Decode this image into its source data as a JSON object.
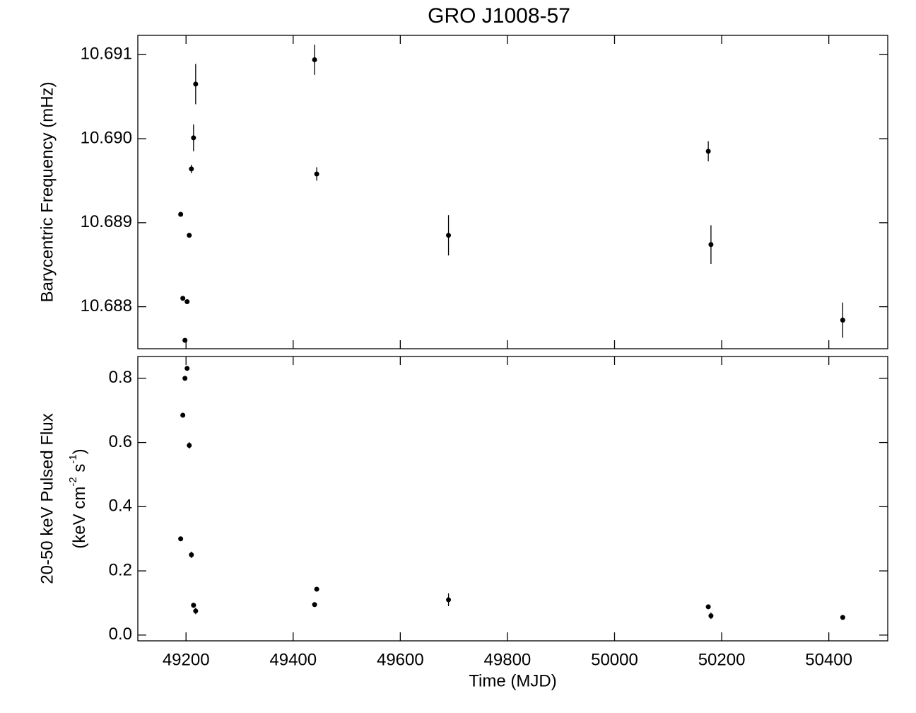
{
  "chart_data": [
    {
      "type": "scatter",
      "title": "GRO J1008-57",
      "ylabel": "Barycentric Frequency (mHz)",
      "x": [
        49190,
        49194,
        49198,
        49202,
        49206,
        49210,
        49214,
        49218,
        49440,
        49444,
        49690,
        50175,
        50180,
        50426
      ],
      "values": [
        10.6891,
        10.6881,
        10.6876,
        10.68806,
        10.68885,
        10.68964,
        10.69001,
        10.69065,
        10.69094,
        10.68958,
        10.68885,
        10.68985,
        10.68874,
        10.68784
      ],
      "errors": [
        2e-05,
        2e-05,
        2e-05,
        2e-05,
        2e-05,
        5e-05,
        0.00016,
        0.00024,
        0.00018,
        8e-05,
        0.00024,
        0.00012,
        0.00023,
        0.00021
      ],
      "color": "#000000",
      "xlim": [
        49110,
        50510
      ],
      "xticks": [
        49200,
        49400,
        49600,
        49800,
        50000,
        50200,
        50400
      ],
      "ylim": [
        10.6875,
        10.69123
      ],
      "yticks": [
        {
          "value": 10.688,
          "label": "10.688"
        },
        {
          "value": 10.689,
          "label": "10.689"
        },
        {
          "value": 10.69,
          "label": "10.690"
        },
        {
          "value": 10.691,
          "label": "10.691"
        }
      ]
    },
    {
      "type": "scatter",
      "xlabel": "Time (MJD)",
      "ylabel": [
        "20-50 keV Pulsed Flux",
        [
          "(keV cm",
          "-2",
          " s",
          "-1",
          ")"
        ]
      ],
      "x": [
        49190,
        49194,
        49198,
        49202,
        49206,
        49210,
        49214,
        49218,
        49440,
        49444,
        49690,
        50175,
        50180,
        50426
      ],
      "values": [
        0.3,
        0.685,
        0.8,
        0.831,
        0.591,
        0.25,
        0.093,
        0.075,
        0.095,
        0.143,
        0.11,
        0.088,
        0.06,
        0.055
      ],
      "errors": [
        0.005,
        0.005,
        0.005,
        0.005,
        0.01,
        0.01,
        0.008,
        0.01,
        0.005,
        0.005,
        0.02,
        0.005,
        0.01,
        0.005
      ],
      "color": "#000000",
      "xlim": [
        49110,
        50510
      ],
      "xticks": [
        49200,
        49400,
        49600,
        49800,
        50000,
        50200,
        50400
      ],
      "ylim": [
        -0.018,
        0.868
      ],
      "yticks": [
        {
          "value": 0,
          "label": "0.0"
        },
        0.2,
        0.4,
        0.6,
        0.8
      ]
    }
  ]
}
